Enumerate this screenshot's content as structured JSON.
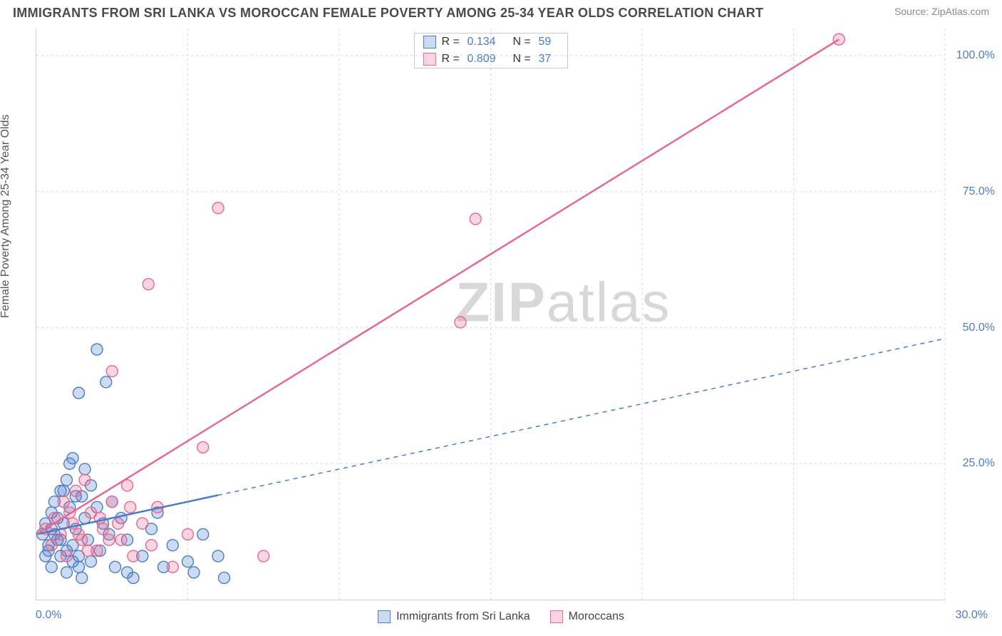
{
  "title": "IMMIGRANTS FROM SRI LANKA VS MOROCCAN FEMALE POVERTY AMONG 25-34 YEAR OLDS CORRELATION CHART",
  "source": "Source: ZipAtlas.com",
  "watermark": "ZIPatlas",
  "chart": {
    "type": "scatter",
    "background_color": "#ffffff",
    "grid_color": "#d8d8d8",
    "axis_color": "#d0d0d0",
    "tick_label_color": "#4a7cc9",
    "tick_fontsize": 16,
    "title_fontsize": 18,
    "title_color": "#4a4a4a",
    "ylabel": "Female Poverty Among 25-34 Year Olds",
    "ylabel_color": "#555555",
    "ylabel_fontsize": 16,
    "xlim": [
      0,
      30
    ],
    "ylim": [
      0,
      105
    ],
    "xticks": [
      0,
      5,
      10,
      15,
      20,
      25,
      30
    ],
    "yticks_labeled": [
      25,
      50,
      75,
      100
    ],
    "xtick_origin_label": "0.0%",
    "xtick_end_label": "30.0%",
    "ytick_labels": [
      "25.0%",
      "50.0%",
      "75.0%",
      "100.0%"
    ],
    "marker_radius": 8,
    "marker_stroke_width": 1.4,
    "marker_fill_opacity": 0.28,
    "series": [
      {
        "name": "Immigrants from Sri Lanka",
        "color": "#4a7cc9",
        "R": 0.134,
        "N": 59,
        "trend": {
          "from": [
            0,
            12
          ],
          "to": [
            30,
            48
          ],
          "solid_until_x": 6,
          "stroke_width": 2.5,
          "dash": "6,6"
        },
        "points": [
          [
            0.2,
            12
          ],
          [
            0.3,
            14
          ],
          [
            0.4,
            9
          ],
          [
            0.5,
            16
          ],
          [
            0.5,
            6
          ],
          [
            0.6,
            18
          ],
          [
            0.7,
            11
          ],
          [
            0.8,
            20
          ],
          [
            0.8,
            8
          ],
          [
            0.9,
            14
          ],
          [
            1.0,
            22
          ],
          [
            1.0,
            5
          ],
          [
            1.1,
            17
          ],
          [
            1.2,
            10
          ],
          [
            1.2,
            26
          ],
          [
            1.3,
            13
          ],
          [
            1.4,
            8
          ],
          [
            1.5,
            19
          ],
          [
            1.5,
            4
          ],
          [
            1.6,
            15
          ],
          [
            1.7,
            11
          ],
          [
            1.8,
            21
          ],
          [
            1.8,
            7
          ],
          [
            2.0,
            17
          ],
          [
            2.0,
            46
          ],
          [
            2.1,
            9
          ],
          [
            2.2,
            14
          ],
          [
            2.3,
            40
          ],
          [
            2.4,
            12
          ],
          [
            2.5,
            18
          ],
          [
            2.6,
            6
          ],
          [
            2.8,
            15
          ],
          [
            3.0,
            11
          ],
          [
            3.0,
            5
          ],
          [
            3.2,
            4
          ],
          [
            3.5,
            8
          ],
          [
            3.8,
            13
          ],
          [
            4.0,
            16
          ],
          [
            4.2,
            6
          ],
          [
            4.5,
            10
          ],
          [
            5.0,
            7
          ],
          [
            5.2,
            5
          ],
          [
            5.5,
            12
          ],
          [
            6.0,
            8
          ],
          [
            6.2,
            4
          ],
          [
            1.4,
            38
          ],
          [
            1.6,
            24
          ],
          [
            0.9,
            20
          ],
          [
            1.1,
            25
          ],
          [
            1.3,
            19
          ],
          [
            0.6,
            12
          ],
          [
            0.4,
            10
          ],
          [
            0.3,
            8
          ],
          [
            0.7,
            15
          ],
          [
            0.5,
            13
          ],
          [
            0.8,
            11
          ],
          [
            1.0,
            9
          ],
          [
            1.2,
            7
          ],
          [
            1.4,
            6
          ]
        ]
      },
      {
        "name": "Moroccans",
        "color": "#e6698f",
        "R": 0.809,
        "N": 37,
        "trend": {
          "from": [
            0,
            12
          ],
          "to": [
            26.5,
            103
          ],
          "solid_until_x": 26.5,
          "stroke_width": 2.5,
          "dash": null
        },
        "points": [
          [
            0.3,
            13
          ],
          [
            0.5,
            10
          ],
          [
            0.6,
            15
          ],
          [
            0.8,
            12
          ],
          [
            0.9,
            18
          ],
          [
            1.0,
            8
          ],
          [
            1.2,
            14
          ],
          [
            1.3,
            20
          ],
          [
            1.5,
            11
          ],
          [
            1.6,
            22
          ],
          [
            1.8,
            16
          ],
          [
            2.0,
            9
          ],
          [
            2.2,
            13
          ],
          [
            2.5,
            18
          ],
          [
            2.5,
            42
          ],
          [
            2.8,
            11
          ],
          [
            3.0,
            21
          ],
          [
            3.2,
            8
          ],
          [
            3.5,
            14
          ],
          [
            3.8,
            10
          ],
          [
            4.0,
            17
          ],
          [
            4.5,
            6
          ],
          [
            5.0,
            12
          ],
          [
            5.5,
            28
          ],
          [
            6.0,
            72
          ],
          [
            3.7,
            58
          ],
          [
            7.5,
            8
          ],
          [
            14.5,
            70
          ],
          [
            14.0,
            51
          ],
          [
            26.5,
            103
          ],
          [
            1.1,
            16
          ],
          [
            1.4,
            12
          ],
          [
            1.7,
            9
          ],
          [
            2.1,
            15
          ],
          [
            2.4,
            11
          ],
          [
            2.7,
            14
          ],
          [
            3.1,
            17
          ]
        ]
      }
    ],
    "legend_top": {
      "border_color": "#c8c8c8",
      "R_label": "R =",
      "N_label": "N ="
    },
    "legend_bottom": {
      "fontsize": 16
    }
  }
}
